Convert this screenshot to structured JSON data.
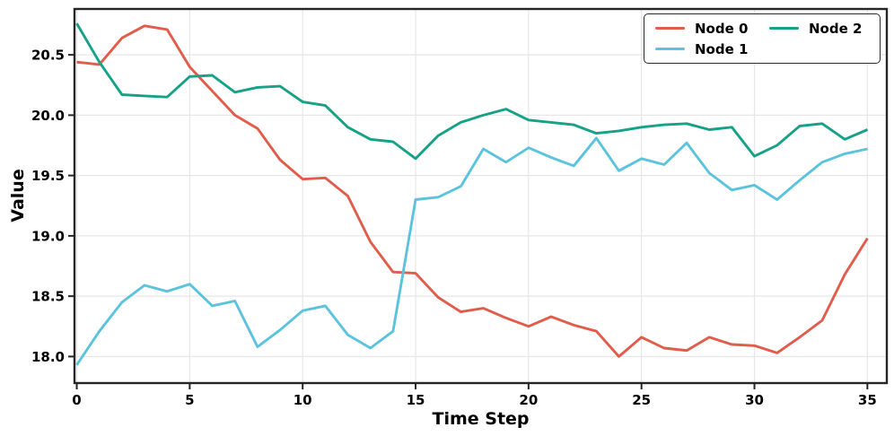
{
  "chart_data": {
    "type": "line",
    "title": "",
    "xlabel": "Time Step",
    "ylabel": "Value",
    "grid": true,
    "legend_position": "upper right",
    "legend_columns": 2,
    "xlim": [
      -0.1,
      35.86
    ],
    "ylim": [
      17.78,
      20.88
    ],
    "x_ticks": [
      0,
      5,
      10,
      15,
      20,
      25,
      30,
      35
    ],
    "x_tick_labels": [
      "0",
      "5",
      "10",
      "15",
      "20",
      "25",
      "30",
      "35"
    ],
    "y_ticks": [
      18.0,
      18.5,
      19.0,
      19.5,
      20.0,
      20.5
    ],
    "y_tick_labels": [
      "18.0",
      "18.5",
      "19.0",
      "19.5",
      "20.0",
      "20.5"
    ],
    "x": [
      0,
      1,
      2,
      3,
      4,
      5,
      6,
      7,
      8,
      9,
      10,
      11,
      12,
      13,
      14,
      15,
      16,
      17,
      18,
      19,
      20,
      21,
      22,
      23,
      24,
      25,
      26,
      27,
      28,
      29,
      30,
      31,
      32,
      33,
      34,
      35
    ],
    "series": [
      {
        "name": "Node 0",
        "color": "#e05c4b",
        "values": [
          20.44,
          20.42,
          20.64,
          20.74,
          20.71,
          20.4,
          20.2,
          20.0,
          19.89,
          19.63,
          19.47,
          19.48,
          19.33,
          18.95,
          18.7,
          18.69,
          18.49,
          18.37,
          18.4,
          18.32,
          18.25,
          18.33,
          18.26,
          18.21,
          18.0,
          18.16,
          18.07,
          18.05,
          18.16,
          18.1,
          18.09,
          18.03,
          18.16,
          18.3,
          18.68,
          18.98
        ]
      },
      {
        "name": "Node 1",
        "color": "#5cc3dd",
        "values": [
          17.93,
          18.21,
          18.45,
          18.59,
          18.54,
          18.6,
          18.42,
          18.46,
          18.08,
          18.22,
          18.38,
          18.42,
          18.18,
          18.07,
          18.21,
          19.3,
          19.32,
          19.41,
          19.72,
          19.61,
          19.73,
          19.65,
          19.58,
          19.81,
          19.54,
          19.64,
          19.59,
          19.77,
          19.52,
          19.38,
          19.42,
          19.3,
          19.46,
          19.61,
          19.68,
          19.72
        ]
      },
      {
        "name": "Node 2",
        "color": "#17a187",
        "values": [
          20.76,
          20.44,
          20.17,
          20.16,
          20.15,
          20.32,
          20.33,
          20.19,
          20.23,
          20.24,
          20.11,
          20.08,
          19.9,
          19.8,
          19.78,
          19.64,
          19.83,
          19.94,
          20.0,
          20.05,
          19.96,
          19.94,
          19.92,
          19.85,
          19.87,
          19.9,
          19.92,
          19.93,
          19.88,
          19.9,
          19.66,
          19.75,
          19.91,
          19.93,
          19.8,
          19.88
        ]
      }
    ]
  }
}
